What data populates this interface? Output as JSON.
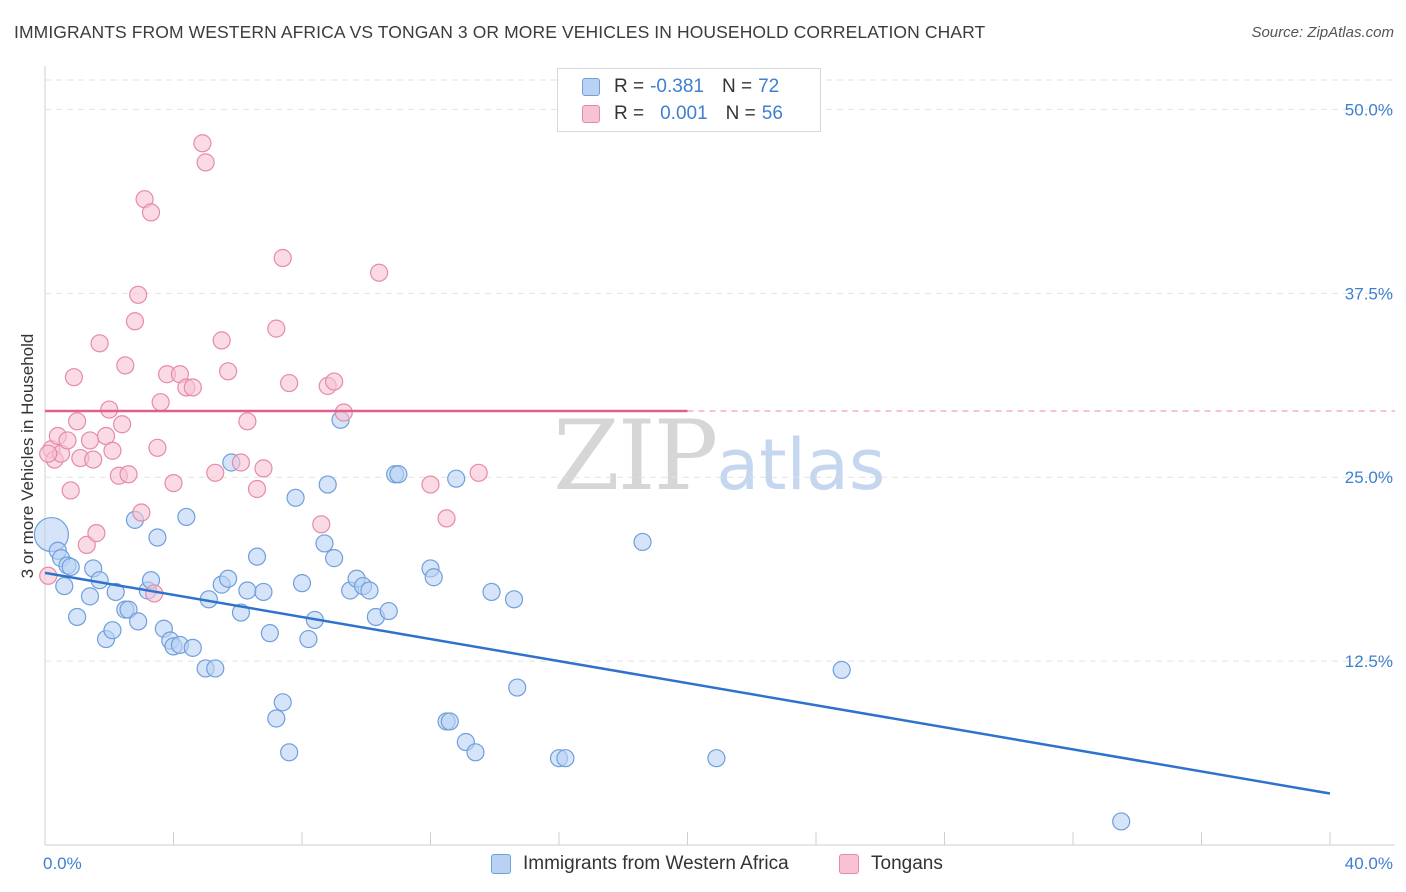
{
  "title": "IMMIGRANTS FROM WESTERN AFRICA VS TONGAN 3 OR MORE VEHICLES IN HOUSEHOLD CORRELATION CHART",
  "source": "Source: ZipAtlas.com",
  "watermark": {
    "zip": "ZIP",
    "atlas": "atlas"
  },
  "legend": {
    "rows": [
      {
        "r_label": "R =",
        "r_value": "-0.381",
        "n_label": "N =",
        "n_value": "72"
      },
      {
        "r_label": "R =",
        "r_value": "0.001",
        "n_label": "N =",
        "n_value": "56"
      }
    ]
  },
  "colors": {
    "blue_fill": "#b9d2f3",
    "blue_stroke": "#6f9fdc",
    "blue_line": "#2f72cc",
    "pink_fill": "#f7c3d4",
    "pink_stroke": "#e68aaa",
    "pink_line": "#e0608c",
    "tick_text": "#3f7fcf"
  },
  "chart_data": {
    "type": "scatter",
    "title": "IMMIGRANTS FROM WESTERN AFRICA VS TONGAN 3 OR MORE VEHICLES IN HOUSEHOLD CORRELATION CHART",
    "xlabel": "",
    "ylabel": "3 or more Vehicles in Household",
    "xlim": [
      0,
      40
    ],
    "ylim": [
      0,
      52
    ],
    "x_tick_labels": [
      "0.0%",
      "40.0%"
    ],
    "y_ticks": [
      12.5,
      25.0,
      37.5,
      50.0
    ],
    "y_tick_labels": [
      "12.5%",
      "25.0%",
      "37.5%",
      "50.0%"
    ],
    "grid": "horizontal-dashed",
    "legend_position": "top-center",
    "series": [
      {
        "name": "Immigrants from Western Africa",
        "trend": {
          "x0": 0,
          "y0": 18.5,
          "x1": 40,
          "y1": 3.5
        },
        "points": [
          [
            0.2,
            21.1
          ],
          [
            0.4,
            20.0
          ],
          [
            0.5,
            19.5
          ],
          [
            0.7,
            19.0
          ],
          [
            0.6,
            17.6
          ],
          [
            0.8,
            18.9
          ],
          [
            1.0,
            15.5
          ],
          [
            1.4,
            16.9
          ],
          [
            1.5,
            18.8
          ],
          [
            1.7,
            18.0
          ],
          [
            1.9,
            14.0
          ],
          [
            2.1,
            14.6
          ],
          [
            2.2,
            17.2
          ],
          [
            2.5,
            16.0
          ],
          [
            2.6,
            16.0
          ],
          [
            2.8,
            22.1
          ],
          [
            2.9,
            15.2
          ],
          [
            3.2,
            17.3
          ],
          [
            3.3,
            18.0
          ],
          [
            3.5,
            20.9
          ],
          [
            3.7,
            14.7
          ],
          [
            3.9,
            13.9
          ],
          [
            4.0,
            13.5
          ],
          [
            4.2,
            13.6
          ],
          [
            4.4,
            22.3
          ],
          [
            4.6,
            13.4
          ],
          [
            5.0,
            12.0
          ],
          [
            5.1,
            16.7
          ],
          [
            5.3,
            12.0
          ],
          [
            5.5,
            17.7
          ],
          [
            5.7,
            18.1
          ],
          [
            5.8,
            26.0
          ],
          [
            6.1,
            15.8
          ],
          [
            6.3,
            17.3
          ],
          [
            6.6,
            19.6
          ],
          [
            6.8,
            17.2
          ],
          [
            7.0,
            14.4
          ],
          [
            7.2,
            8.6
          ],
          [
            7.4,
            9.7
          ],
          [
            7.6,
            6.3
          ],
          [
            7.8,
            23.6
          ],
          [
            8.0,
            17.8
          ],
          [
            8.2,
            14.0
          ],
          [
            8.4,
            15.3
          ],
          [
            8.7,
            20.5
          ],
          [
            8.8,
            24.5
          ],
          [
            9.0,
            19.5
          ],
          [
            9.2,
            28.9
          ],
          [
            9.5,
            17.3
          ],
          [
            9.7,
            18.1
          ],
          [
            9.9,
            17.6
          ],
          [
            10.1,
            17.3
          ],
          [
            10.3,
            15.5
          ],
          [
            10.7,
            15.9
          ],
          [
            10.9,
            25.2
          ],
          [
            11.0,
            25.2
          ],
          [
            12.0,
            18.8
          ],
          [
            12.1,
            18.2
          ],
          [
            12.5,
            8.4
          ],
          [
            12.6,
            8.4
          ],
          [
            12.8,
            24.9
          ],
          [
            13.1,
            7.0
          ],
          [
            13.4,
            6.3
          ],
          [
            13.9,
            17.2
          ],
          [
            14.6,
            16.7
          ],
          [
            14.7,
            10.7
          ],
          [
            16.0,
            5.9
          ],
          [
            16.2,
            5.9
          ],
          [
            18.6,
            20.6
          ],
          [
            20.9,
            5.9
          ],
          [
            24.8,
            11.9
          ],
          [
            33.5,
            1.6
          ]
        ]
      },
      {
        "name": "Tongans",
        "trend": {
          "x0": 0,
          "y0": 29.5,
          "x1": 20,
          "y1": 29.5
        },
        "points": [
          [
            0.1,
            18.3
          ],
          [
            0.2,
            26.9
          ],
          [
            0.3,
            26.2
          ],
          [
            0.4,
            27.8
          ],
          [
            0.5,
            26.6
          ],
          [
            0.7,
            27.5
          ],
          [
            0.8,
            24.1
          ],
          [
            0.9,
            31.8
          ],
          [
            1.0,
            28.8
          ],
          [
            1.1,
            26.3
          ],
          [
            1.3,
            20.4
          ],
          [
            1.4,
            27.5
          ],
          [
            1.5,
            26.2
          ],
          [
            1.6,
            21.2
          ],
          [
            1.7,
            34.1
          ],
          [
            1.9,
            27.8
          ],
          [
            2.0,
            29.6
          ],
          [
            2.1,
            26.8
          ],
          [
            2.3,
            25.1
          ],
          [
            2.4,
            28.6
          ],
          [
            2.5,
            32.6
          ],
          [
            2.6,
            25.2
          ],
          [
            2.8,
            35.6
          ],
          [
            2.9,
            37.4
          ],
          [
            3.0,
            22.6
          ],
          [
            3.1,
            43.9
          ],
          [
            3.3,
            43.0
          ],
          [
            3.4,
            17.1
          ],
          [
            3.5,
            27.0
          ],
          [
            3.6,
            30.1
          ],
          [
            3.8,
            32.0
          ],
          [
            4.0,
            24.6
          ],
          [
            4.2,
            32.0
          ],
          [
            4.4,
            31.1
          ],
          [
            4.6,
            31.1
          ],
          [
            4.9,
            47.7
          ],
          [
            5.0,
            46.4
          ],
          [
            5.3,
            25.3
          ],
          [
            5.5,
            34.3
          ],
          [
            5.7,
            32.2
          ],
          [
            6.1,
            26.0
          ],
          [
            6.3,
            28.8
          ],
          [
            6.6,
            24.2
          ],
          [
            6.8,
            25.6
          ],
          [
            7.2,
            35.1
          ],
          [
            7.4,
            39.9
          ],
          [
            7.6,
            31.4
          ],
          [
            8.6,
            21.8
          ],
          [
            8.8,
            31.2
          ],
          [
            9.0,
            31.5
          ],
          [
            9.3,
            29.4
          ],
          [
            10.4,
            38.9
          ],
          [
            12.0,
            24.5
          ],
          [
            12.5,
            22.2
          ],
          [
            13.5,
            25.3
          ],
          [
            0.1,
            26.6
          ]
        ]
      }
    ]
  }
}
